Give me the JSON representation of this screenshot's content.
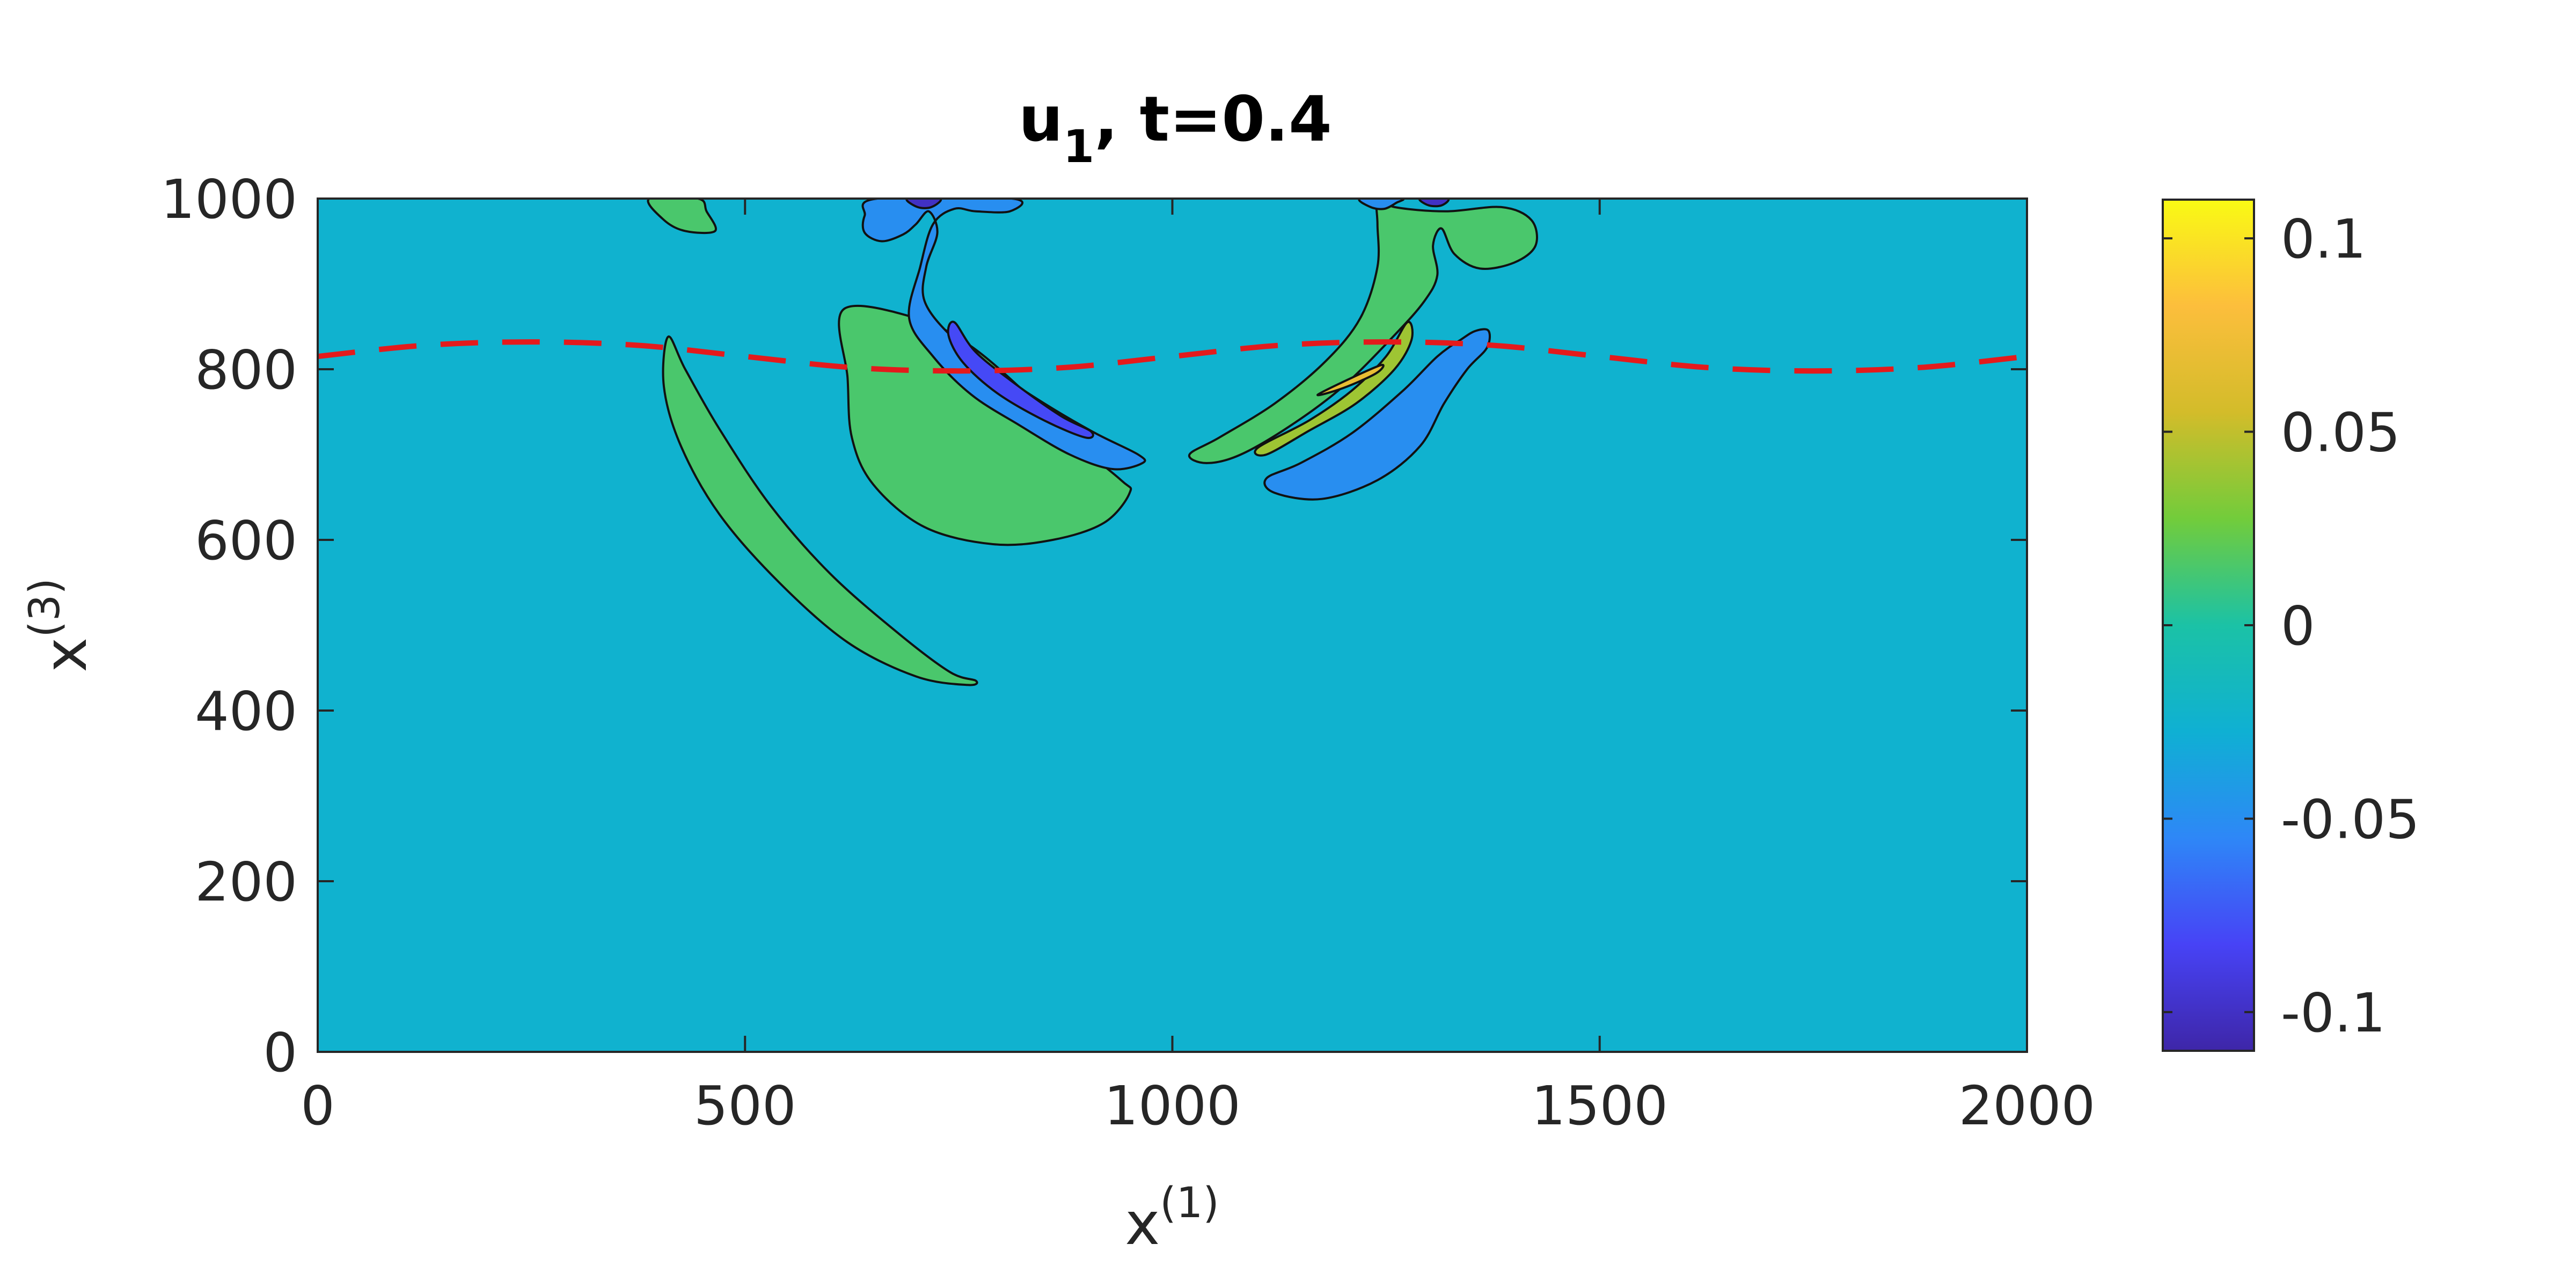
{
  "chart_data": {
    "type": "contour",
    "title": {
      "main": "u",
      "subscript": "1",
      "rest": ", t=0.4"
    },
    "xlabel": {
      "base": "x",
      "sup": "(1)"
    },
    "ylabel": {
      "base": "x",
      "sup": "(3)"
    },
    "xlim": [
      0,
      2000
    ],
    "ylim": [
      0,
      1000
    ],
    "xticks": [
      "0",
      "500",
      "1000",
      "1500",
      "2000"
    ],
    "yticks": [
      "0",
      "200",
      "400",
      "600",
      "800",
      "1000"
    ],
    "background_level": -0.025,
    "colorbar": {
      "range": [
        -0.11,
        0.11
      ],
      "ticks": [
        {
          "value": -0.1,
          "label": "-0.1"
        },
        {
          "value": -0.05,
          "label": "-0.05"
        },
        {
          "value": 0,
          "label": "0"
        },
        {
          "value": 0.05,
          "label": "0.05"
        },
        {
          "value": 0.1,
          "label": "0.1"
        }
      ],
      "colormap": [
        "#3e26a8",
        "#4743f6",
        "#2e87f7",
        "#0fb0d3",
        "#1bc2a6",
        "#72cc3b",
        "#d3bc2a",
        "#fcbe3c",
        "#f9fa14"
      ]
    },
    "dashed_curve": {
      "color": "#e41a1c",
      "points": [
        [
          0,
          815
        ],
        [
          125,
          828
        ],
        [
          250,
          832
        ],
        [
          375,
          828
        ],
        [
          500,
          815
        ],
        [
          625,
          802
        ],
        [
          750,
          798
        ],
        [
          875,
          802
        ],
        [
          1000,
          815
        ],
        [
          1125,
          828
        ],
        [
          1250,
          832
        ],
        [
          1375,
          828
        ],
        [
          1500,
          815
        ],
        [
          1625,
          802
        ],
        [
          1750,
          798
        ],
        [
          1875,
          802
        ],
        [
          2000,
          815
        ]
      ]
    },
    "regions": [
      {
        "name": "long-positive-lobe",
        "level": 0.015,
        "points": [
          [
            410,
            838
          ],
          [
            430,
            800
          ],
          [
            470,
            730
          ],
          [
            530,
            640
          ],
          [
            600,
            560
          ],
          [
            680,
            490
          ],
          [
            740,
            445
          ],
          [
            770,
            435
          ],
          [
            760,
            430
          ],
          [
            700,
            440
          ],
          [
            620,
            480
          ],
          [
            540,
            550
          ],
          [
            470,
            630
          ],
          [
            425,
            710
          ],
          [
            405,
            780
          ]
        ]
      },
      {
        "name": "top-left-small-lobe",
        "level": 0.015,
        "points": [
          [
            388,
            1000
          ],
          [
            405,
            975
          ],
          [
            430,
            962
          ],
          [
            465,
            962
          ],
          [
            455,
            985
          ],
          [
            445,
            1000
          ]
        ]
      },
      {
        "name": "central-positive-lobe",
        "level": 0.015,
        "points": [
          [
            615,
            870
          ],
          [
            700,
            860
          ],
          [
            760,
            830
          ],
          [
            820,
            780
          ],
          [
            880,
            720
          ],
          [
            940,
            670
          ],
          [
            950,
            655
          ],
          [
            920,
            620
          ],
          [
            860,
            600
          ],
          [
            790,
            595
          ],
          [
            710,
            615
          ],
          [
            650,
            665
          ],
          [
            625,
            720
          ],
          [
            620,
            790
          ]
        ]
      },
      {
        "name": "left-negative-stem",
        "level": -0.05,
        "points": [
          [
            655,
            1000
          ],
          [
            640,
            980
          ],
          [
            640,
            960
          ],
          [
            660,
            950
          ],
          [
            685,
            958
          ],
          [
            700,
            970
          ],
          [
            715,
            985
          ],
          [
            725,
            960
          ],
          [
            712,
            920
          ],
          [
            710,
            880
          ],
          [
            740,
            840
          ],
          [
            790,
            800
          ],
          [
            850,
            760
          ],
          [
            910,
            725
          ],
          [
            960,
            700
          ],
          [
            965,
            690
          ],
          [
            930,
            683
          ],
          [
            880,
            700
          ],
          [
            820,
            735
          ],
          [
            765,
            770
          ],
          [
            720,
            815
          ],
          [
            692,
            860
          ],
          [
            705,
            920
          ],
          [
            720,
            970
          ],
          [
            745,
            988
          ],
          [
            770,
            985
          ],
          [
            810,
            985
          ],
          [
            812,
            1000
          ]
        ]
      },
      {
        "name": "left-negative-core",
        "level": -0.08,
        "points": [
          [
            745,
            855
          ],
          [
            770,
            820
          ],
          [
            820,
            780
          ],
          [
            870,
            745
          ],
          [
            905,
            727
          ],
          [
            898,
            720
          ],
          [
            850,
            740
          ],
          [
            795,
            772
          ],
          [
            755,
            808
          ],
          [
            738,
            840
          ]
        ]
      },
      {
        "name": "left-top-spot",
        "level": -0.1,
        "points": [
          [
            690,
            1000
          ],
          [
            702,
            990
          ],
          [
            718,
            990
          ],
          [
            728,
            1000
          ]
        ]
      },
      {
        "name": "right-positive-stem",
        "level": 0.015,
        "points": [
          [
            1240,
            1000
          ],
          [
            1260,
            990
          ],
          [
            1320,
            985
          ],
          [
            1385,
            990
          ],
          [
            1420,
            975
          ],
          [
            1425,
            945
          ],
          [
            1400,
            925
          ],
          [
            1360,
            918
          ],
          [
            1330,
            935
          ],
          [
            1315,
            965
          ],
          [
            1305,
            945
          ],
          [
            1310,
            910
          ],
          [
            1295,
            880
          ],
          [
            1260,
            840
          ],
          [
            1200,
            780
          ],
          [
            1140,
            735
          ],
          [
            1080,
            700
          ],
          [
            1040,
            690
          ],
          [
            1020,
            700
          ],
          [
            1055,
            720
          ],
          [
            1120,
            760
          ],
          [
            1180,
            810
          ],
          [
            1220,
            860
          ],
          [
            1240,
            920
          ],
          [
            1240,
            970
          ]
        ]
      },
      {
        "name": "right-inner-green",
        "level": 0.04,
        "points": [
          [
            1100,
            708
          ],
          [
            1160,
            740
          ],
          [
            1210,
            775
          ],
          [
            1250,
            815
          ],
          [
            1275,
            855
          ],
          [
            1280,
            835
          ],
          [
            1260,
            800
          ],
          [
            1215,
            760
          ],
          [
            1160,
            728
          ],
          [
            1110,
            700
          ]
        ]
      },
      {
        "name": "right-core-yellow",
        "level": 0.07,
        "points": [
          [
            1170,
            770
          ],
          [
            1210,
            790
          ],
          [
            1245,
            805
          ],
          [
            1238,
            795
          ],
          [
            1200,
            778
          ]
        ]
      },
      {
        "name": "right-negative-lobe",
        "level": -0.05,
        "points": [
          [
            1338,
            835
          ],
          [
            1355,
            845
          ],
          [
            1370,
            845
          ],
          [
            1368,
            825
          ],
          [
            1345,
            800
          ],
          [
            1318,
            760
          ],
          [
            1290,
            710
          ],
          [
            1240,
            670
          ],
          [
            1175,
            648
          ],
          [
            1120,
            655
          ],
          [
            1110,
            672
          ],
          [
            1150,
            690
          ],
          [
            1210,
            725
          ],
          [
            1270,
            775
          ],
          [
            1310,
            815
          ]
        ]
      },
      {
        "name": "right-top-negative-spot",
        "level": -0.05,
        "points": [
          [
            1220,
            1000
          ],
          [
            1232,
            990
          ],
          [
            1248,
            988
          ],
          [
            1262,
            995
          ],
          [
            1268,
            1000
          ]
        ]
      },
      {
        "name": "right-top-dark-spot",
        "level": -0.1,
        "points": [
          [
            1290,
            1000
          ],
          [
            1300,
            992
          ],
          [
            1315,
            992
          ],
          [
            1322,
            1000
          ]
        ]
      }
    ]
  }
}
